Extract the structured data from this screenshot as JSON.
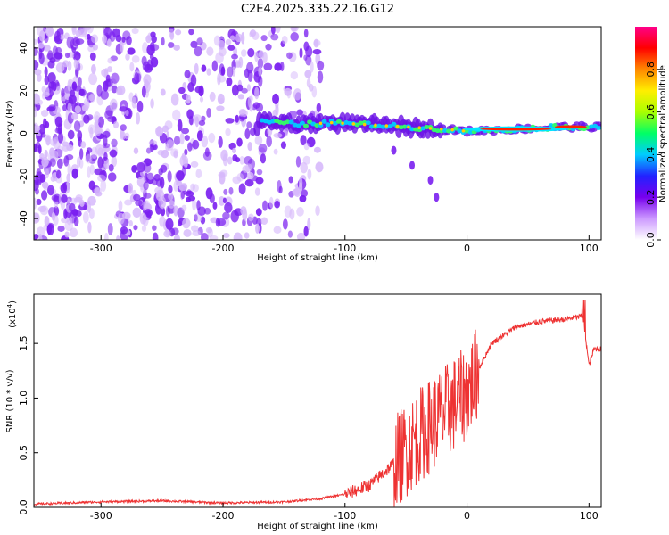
{
  "title": "C2E4.2025.335.22.16.G12",
  "chart_data": [
    {
      "type": "heatmap",
      "name": "spectrogram",
      "xlabel": "Height of straight line (km)",
      "ylabel": "Frequency (Hz)",
      "xlim": [
        -355,
        110
      ],
      "ylim": [
        -50,
        50
      ],
      "x_ticks": [
        -300,
        -200,
        -100,
        0,
        100
      ],
      "x_tick_labels": [
        "-300",
        "-200",
        "-100",
        "0",
        "100"
      ],
      "y_ticks": [
        -40,
        -20,
        0,
        20,
        40
      ],
      "y_tick_labels": [
        "-40",
        "-20",
        "0",
        "20",
        "40"
      ],
      "colorbar": {
        "label": "Normalized spectral amplitude",
        "range": [
          0.0,
          1.0
        ],
        "ticks": [
          0.0,
          0.2,
          0.4,
          0.6,
          0.8
        ],
        "tick_labels": [
          "0.0",
          "0.2",
          "0.4",
          "0.6",
          "0.8"
        ],
        "colors": [
          "#ffffff",
          "#cc99ff",
          "#7700ee",
          "#2222ff",
          "#00ccff",
          "#00ff66",
          "#aaff00",
          "#ffee00",
          "#ff8800",
          "#ff0000",
          "#ff0088"
        ]
      },
      "noise_region_x": [
        -355,
        -120
      ],
      "signal_track": [
        {
          "x": -170,
          "y": 6
        },
        {
          "x": -140,
          "y": 4
        },
        {
          "x": -110,
          "y": 5
        },
        {
          "x": -80,
          "y": 4
        },
        {
          "x": -50,
          "y": 3
        },
        {
          "x": -20,
          "y": 2
        },
        {
          "x": 0,
          "y": 1
        },
        {
          "x": 40,
          "y": 2
        },
        {
          "x": 80,
          "y": 3
        },
        {
          "x": 110,
          "y": 3
        }
      ],
      "signal_branch": [
        {
          "x": -60,
          "y": -8
        },
        {
          "x": -45,
          "y": -15
        },
        {
          "x": -30,
          "y": -22
        },
        {
          "x": -25,
          "y": -30
        }
      ]
    },
    {
      "type": "line",
      "name": "snr",
      "xlabel": "Height of straight line (km)",
      "ylabel": "SNR (10 * v/v)",
      "multiplier_label": "(x10",
      "multiplier_exponent": "4",
      "xlim": [
        -355,
        110
      ],
      "ylim": [
        0,
        1.95
      ],
      "x_ticks": [
        -300,
        -200,
        -100,
        0,
        100
      ],
      "x_tick_labels": [
        "-300",
        "-200",
        "-100",
        "0",
        "100"
      ],
      "y_ticks": [
        0,
        0.5,
        1.0,
        1.5
      ],
      "y_tick_labels": [
        "0.0",
        "0.5",
        "1.0",
        "1.5"
      ],
      "color": "#ee3333",
      "series_envelope": [
        {
          "x": -355,
          "y": 0.03
        },
        {
          "x": -300,
          "y": 0.05
        },
        {
          "x": -250,
          "y": 0.06
        },
        {
          "x": -200,
          "y": 0.04
        },
        {
          "x": -150,
          "y": 0.05
        },
        {
          "x": -120,
          "y": 0.08
        },
        {
          "x": -100,
          "y": 0.12
        },
        {
          "x": -80,
          "y": 0.2
        },
        {
          "x": -60,
          "y": 0.4
        },
        {
          "x": -40,
          "y": 0.65
        },
        {
          "x": -20,
          "y": 0.85
        },
        {
          "x": 0,
          "y": 1.05
        },
        {
          "x": 20,
          "y": 1.5
        },
        {
          "x": 40,
          "y": 1.65
        },
        {
          "x": 60,
          "y": 1.7
        },
        {
          "x": 80,
          "y": 1.72
        },
        {
          "x": 95,
          "y": 1.75
        },
        {
          "x": 100,
          "y": 1.3
        },
        {
          "x": 104,
          "y": 1.45
        },
        {
          "x": 110,
          "y": 1.45
        }
      ]
    }
  ]
}
